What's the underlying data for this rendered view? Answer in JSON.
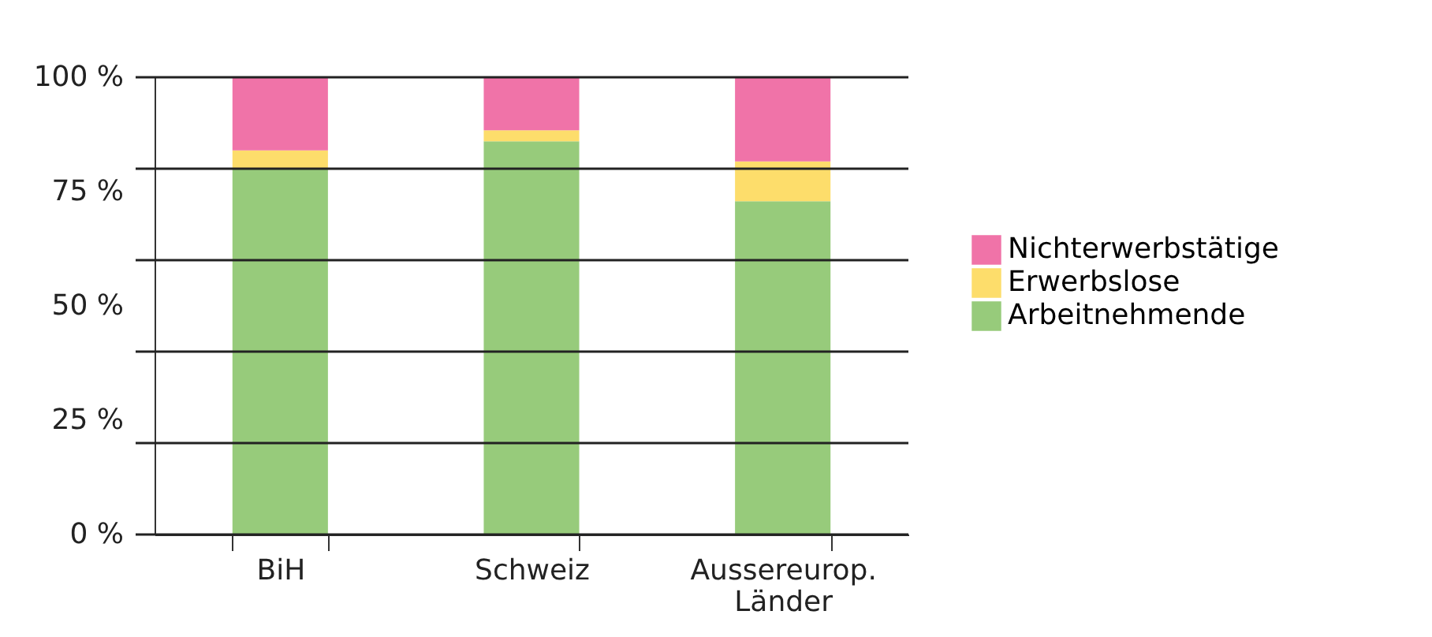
{
  "chart_data": {
    "type": "bar",
    "stacked": true,
    "categories": [
      "BiH",
      "Schweiz",
      "Aussereurop.\nLänder"
    ],
    "series": [
      {
        "name": "Arbeitnehmende",
        "color": "#97cb7b",
        "values": [
          80,
          86,
          72.9
        ]
      },
      {
        "name": "Erwerbslose",
        "color": "#fddd6b",
        "values": [
          4,
          2.4,
          8.7
        ]
      },
      {
        "name": "Nichterwerbstätige",
        "color": "#f073a8",
        "values": [
          16,
          11.6,
          18.4
        ]
      }
    ],
    "ylim": [
      0,
      100
    ],
    "yticks": [
      {
        "value": 0,
        "label": "0 %"
      },
      {
        "value": 20,
        "label": null
      },
      {
        "value": 25,
        "label": "25 %"
      },
      {
        "value": 40,
        "label": null
      },
      {
        "value": 50,
        "label": "50 %"
      },
      {
        "value": 60,
        "label": null
      },
      {
        "value": 75,
        "label": "75 %"
      },
      {
        "value": 80,
        "label": null
      },
      {
        "value": 100,
        "label": "100 %"
      }
    ],
    "grid": "y",
    "legend": "right"
  }
}
